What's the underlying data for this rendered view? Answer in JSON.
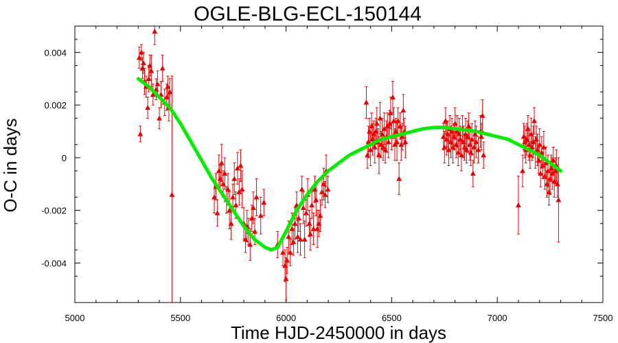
{
  "chart_data": {
    "type": "scatter",
    "title": "OGLE-BLG-ECL-150144",
    "xlabel": "Time HJD-2450000 in days",
    "ylabel": "O-C in days",
    "xlim": [
      5000,
      7500
    ],
    "ylim": [
      -0.0055,
      0.005
    ],
    "x_ticks": [
      5000,
      5500,
      6000,
      6500,
      7000,
      7500
    ],
    "y_ticks": [
      -0.004,
      -0.002,
      0,
      0.002,
      0.004
    ],
    "x_tick_labels": [
      "5000",
      "5500",
      "6000",
      "6500",
      "7000",
      "7500"
    ],
    "y_tick_labels": [
      "-0.004",
      "-0.002",
      "0",
      "0.002",
      "0.004"
    ],
    "grid": false,
    "colors": {
      "points": "#ee0000",
      "model": "#00ee00",
      "axes": "#000000"
    },
    "series": [
      {
        "kind": "observations",
        "marker": "triangle",
        "points": [
          [
            5305,
            0.0038,
            0.0004
          ],
          [
            5310,
            0.0009,
            0.0003
          ],
          [
            5315,
            0.004,
            0.0003
          ],
          [
            5320,
            0.0034,
            0.0004
          ],
          [
            5325,
            0.0036,
            0.0004
          ],
          [
            5330,
            0.0029,
            0.0005
          ],
          [
            5338,
            0.0027,
            0.0004
          ],
          [
            5345,
            0.0019,
            0.0004
          ],
          [
            5350,
            0.003,
            0.0005
          ],
          [
            5355,
            0.0035,
            0.0004
          ],
          [
            5362,
            0.0033,
            0.0006
          ],
          [
            5370,
            0.0024,
            0.0004
          ],
          [
            5378,
            0.0048,
            0.0005
          ],
          [
            5385,
            0.0026,
            0.0004
          ],
          [
            5392,
            0.0028,
            0.0005
          ],
          [
            5400,
            0.0015,
            0.0004
          ],
          [
            5408,
            0.0024,
            0.0005
          ],
          [
            5415,
            0.0034,
            0.0005
          ],
          [
            5425,
            0.0021,
            0.0005
          ],
          [
            5435,
            0.0023,
            0.0005
          ],
          [
            5440,
            0.0027,
            0.0004
          ],
          [
            5445,
            0.0019,
            0.0005
          ],
          [
            5450,
            0.0025,
            0.0005
          ],
          [
            5460,
            -0.0014,
            0.0045
          ],
          [
            5660,
            -0.0015,
            0.0006
          ],
          [
            5668,
            -0.0011,
            0.0005
          ],
          [
            5675,
            -0.0021,
            0.0005
          ],
          [
            5682,
            -0.0005,
            0.0006
          ],
          [
            5688,
            -0.0008,
            0.0005
          ],
          [
            5695,
            -0.0002,
            0.0007
          ],
          [
            5702,
            -0.001,
            0.0005
          ],
          [
            5710,
            -0.0006,
            0.0006
          ],
          [
            5718,
            -0.0016,
            0.0005
          ],
          [
            5725,
            -0.0012,
            0.0006
          ],
          [
            5732,
            -0.002,
            0.0007
          ],
          [
            5740,
            -0.0025,
            0.0006
          ],
          [
            5748,
            -0.0015,
            0.0005
          ],
          [
            5755,
            -0.0008,
            0.0006
          ],
          [
            5762,
            -0.0018,
            0.0005
          ],
          [
            5770,
            -0.0004,
            0.0006
          ],
          [
            5778,
            -0.0013,
            0.0005
          ],
          [
            5785,
            -0.0003,
            0.0006
          ],
          [
            5792,
            -0.0012,
            0.0007
          ],
          [
            5800,
            -0.0025,
            0.0006
          ],
          [
            5808,
            -0.0031,
            0.0005
          ],
          [
            5815,
            -0.0026,
            0.0006
          ],
          [
            5822,
            -0.0028,
            0.0005
          ],
          [
            5830,
            -0.0033,
            0.0006
          ],
          [
            5838,
            -0.0023,
            0.0005
          ],
          [
            5845,
            -0.0019,
            0.0006
          ],
          [
            5852,
            -0.0028,
            0.0005
          ],
          [
            5860,
            -0.0015,
            0.0007
          ],
          [
            5880,
            -0.0022,
            0.0007
          ],
          [
            5895,
            -0.0017,
            0.0005
          ],
          [
            5960,
            -0.0033,
            0.0005
          ],
          [
            5985,
            -0.0036,
            0.0005
          ],
          [
            5995,
            -0.0041,
            0.0006
          ],
          [
            6000,
            -0.0046,
            0.0008
          ],
          [
            6005,
            -0.0039,
            0.0005
          ],
          [
            6012,
            -0.003,
            0.0006
          ],
          [
            6020,
            -0.0036,
            0.0005
          ],
          [
            6028,
            -0.0027,
            0.0006
          ],
          [
            6035,
            -0.0032,
            0.0005
          ],
          [
            6042,
            -0.0025,
            0.0006
          ],
          [
            6050,
            -0.0018,
            0.0005
          ],
          [
            6055,
            -0.003,
            0.0006
          ],
          [
            6060,
            -0.0023,
            0.0005
          ],
          [
            6068,
            -0.0031,
            0.0006
          ],
          [
            6075,
            -0.0012,
            0.0005
          ],
          [
            6082,
            -0.0019,
            0.0006
          ],
          [
            6088,
            -0.0031,
            0.0007
          ],
          [
            6095,
            -0.0021,
            0.0005
          ],
          [
            6102,
            -0.0014,
            0.0006
          ],
          [
            6110,
            -0.0025,
            0.0005
          ],
          [
            6115,
            -0.0029,
            0.0006
          ],
          [
            6122,
            -0.0018,
            0.0005
          ],
          [
            6130,
            -0.0027,
            0.0006
          ],
          [
            6136,
            -0.0012,
            0.0005
          ],
          [
            6142,
            -0.0016,
            0.0006
          ],
          [
            6148,
            -0.0027,
            0.0007
          ],
          [
            6155,
            -0.0025,
            0.0005
          ],
          [
            6162,
            -0.0022,
            0.0006
          ],
          [
            6170,
            -0.0013,
            0.0005
          ],
          [
            6178,
            -0.001,
            0.0006
          ],
          [
            6185,
            -0.0014,
            0.0005
          ],
          [
            6190,
            -0.0005,
            0.0006
          ],
          [
            6198,
            -0.0012,
            0.0005
          ],
          [
            6380,
            0.0021,
            0.0006
          ],
          [
            6385,
            0.0001,
            0.0005
          ],
          [
            6390,
            0.0006,
            0.0006
          ],
          [
            6395,
            0.001,
            0.0005
          ],
          [
            6400,
            0.0003,
            0.0006
          ],
          [
            6405,
            0.0012,
            0.0005
          ],
          [
            6410,
            0.0007,
            0.0006
          ],
          [
            6415,
            0.0009,
            0.0005
          ],
          [
            6420,
            0.0004,
            0.0006
          ],
          [
            6425,
            0.001,
            0.0005
          ],
          [
            6430,
            0.0013,
            0.0006
          ],
          [
            6435,
            0.0006,
            0.0005
          ],
          [
            6440,
            0.0001,
            0.0007
          ],
          [
            6445,
            0.0015,
            0.0006
          ],
          [
            6450,
            0.0005,
            0.0005
          ],
          [
            6455,
            0.0009,
            0.0006
          ],
          [
            6460,
            0.0004,
            0.0005
          ],
          [
            6465,
            0.0011,
            0.0006
          ],
          [
            6470,
            0.0003,
            0.0005
          ],
          [
            6475,
            0.0008,
            0.0006
          ],
          [
            6480,
            0.0012,
            0.0005
          ],
          [
            6485,
            0.0006,
            0.0006
          ],
          [
            6490,
            0.0013,
            0.0005
          ],
          [
            6495,
            0.0017,
            0.0006
          ],
          [
            6500,
            0.0008,
            0.0005
          ],
          [
            6505,
            0.0023,
            0.0006
          ],
          [
            6510,
            0.0014,
            0.0005
          ],
          [
            6515,
            0.0005,
            0.0006
          ],
          [
            6520,
            0.001,
            0.0005
          ],
          [
            6525,
            0.0006,
            0.0007
          ],
          [
            6530,
            0.0014,
            0.0005
          ],
          [
            6535,
            -0.0008,
            0.0006
          ],
          [
            6540,
            0.0012,
            0.0005
          ],
          [
            6545,
            0.0005,
            0.0006
          ],
          [
            6550,
            0.0008,
            0.0005
          ],
          [
            6555,
            0.0018,
            0.0006
          ],
          [
            6560,
            0.001,
            0.0005
          ],
          [
            6565,
            0.0006,
            0.0006
          ],
          [
            6745,
            0.0008,
            0.0005
          ],
          [
            6750,
            0.0004,
            0.0006
          ],
          [
            6755,
            0.0014,
            0.0005
          ],
          [
            6760,
            0.0007,
            0.0006
          ],
          [
            6765,
            0.0009,
            0.0005
          ],
          [
            6770,
            0.0003,
            0.0006
          ],
          [
            6775,
            0.0011,
            0.0005
          ],
          [
            6780,
            0.0006,
            0.0006
          ],
          [
            6785,
            0.001,
            0.0005
          ],
          [
            6790,
            0.0004,
            0.0006
          ],
          [
            6795,
            0.0008,
            0.0005
          ],
          [
            6800,
            0.0013,
            0.0006
          ],
          [
            6805,
            0.0005,
            0.0005
          ],
          [
            6810,
            0.001,
            0.0006
          ],
          [
            6815,
            0.0002,
            0.0005
          ],
          [
            6820,
            0.0009,
            0.0006
          ],
          [
            6825,
            0.0007,
            0.0005
          ],
          [
            6830,
            0.0001,
            0.0006
          ],
          [
            6835,
            0.0011,
            0.0005
          ],
          [
            6840,
            0.0006,
            0.0006
          ],
          [
            6845,
            0.0004,
            0.0005
          ],
          [
            6850,
            0.0009,
            0.0006
          ],
          [
            6855,
            0.0003,
            0.0005
          ],
          [
            6860,
            0.0008,
            0.0006
          ],
          [
            6865,
            0.0012,
            0.0005
          ],
          [
            6870,
            0.0005,
            0.0006
          ],
          [
            6875,
            0.0002,
            0.0005
          ],
          [
            6880,
            0.0007,
            0.0006
          ],
          [
            6885,
            -0.0006,
            0.0005
          ],
          [
            6890,
            0.0004,
            0.0006
          ],
          [
            6895,
            0.0009,
            0.0005
          ],
          [
            6900,
            0.0006,
            0.0006
          ],
          [
            6910,
            0.0003,
            0.0005
          ],
          [
            6920,
            0.001,
            0.0006
          ],
          [
            6925,
            0.0008,
            0.0005
          ],
          [
            6930,
            0.0016,
            0.0006
          ],
          [
            6935,
            0.0001,
            0.0005
          ],
          [
            7100,
            -0.0018,
            0.0011
          ],
          [
            7120,
            -0.0005,
            0.0006
          ],
          [
            7125,
            0.0008,
            0.0005
          ],
          [
            7130,
            0.0006,
            0.0006
          ],
          [
            7135,
            0.0003,
            0.0005
          ],
          [
            7140,
            0.0007,
            0.0006
          ],
          [
            7145,
            0.0011,
            0.0005
          ],
          [
            7150,
            0.0005,
            0.0006
          ],
          [
            7155,
            0.0001,
            0.0005
          ],
          [
            7160,
            0.0009,
            0.0006
          ],
          [
            7165,
            0.0004,
            0.0005
          ],
          [
            7170,
            0.0006,
            0.0006
          ],
          [
            7175,
            0.0014,
            0.0005
          ],
          [
            7180,
            0.0002,
            0.0006
          ],
          [
            7185,
            0.0007,
            0.0005
          ],
          [
            7190,
            0.0003,
            0.0006
          ],
          [
            7195,
            -0.0001,
            0.0005
          ],
          [
            7200,
            0.0005,
            0.0006
          ],
          [
            7205,
            -0.0006,
            0.0005
          ],
          [
            7210,
            0.0002,
            0.0006
          ],
          [
            7215,
            -0.0003,
            0.0005
          ],
          [
            7220,
            0.0004,
            0.0006
          ],
          [
            7225,
            -0.0007,
            0.0005
          ],
          [
            7230,
            -0.0002,
            0.0006
          ],
          [
            7235,
            -0.001,
            0.0005
          ],
          [
            7240,
            -0.0005,
            0.0006
          ],
          [
            7245,
            -0.0013,
            0.0005
          ],
          [
            7250,
            -0.0008,
            0.0006
          ],
          [
            7255,
            -0.0004,
            0.0005
          ],
          [
            7260,
            -0.0006,
            0.0006
          ],
          [
            7265,
            -0.0001,
            0.0005
          ],
          [
            7270,
            -0.0009,
            0.0006
          ],
          [
            7275,
            -0.0005,
            0.0005
          ],
          [
            7280,
            -0.0003,
            0.0006
          ],
          [
            7285,
            -0.001,
            0.0005
          ],
          [
            7290,
            -0.0016,
            0.0016
          ]
        ]
      },
      {
        "kind": "model",
        "line": "solid",
        "points": [
          [
            5300,
            0.003
          ],
          [
            5350,
            0.0027
          ],
          [
            5400,
            0.0023
          ],
          [
            5450,
            0.0019
          ],
          [
            5500,
            0.0013
          ],
          [
            5550,
            0.0006
          ],
          [
            5600,
            -0.0001
          ],
          [
            5650,
            -0.0008
          ],
          [
            5700,
            -0.0014
          ],
          [
            5750,
            -0.002
          ],
          [
            5800,
            -0.0026
          ],
          [
            5850,
            -0.0031
          ],
          [
            5900,
            -0.0034
          ],
          [
            5930,
            -0.0035
          ],
          [
            5960,
            -0.0034
          ],
          [
            6000,
            -0.0028
          ],
          [
            6050,
            -0.002
          ],
          [
            6100,
            -0.0014
          ],
          [
            6150,
            -0.0009
          ],
          [
            6200,
            -0.0005
          ],
          [
            6250,
            -0.0002
          ],
          [
            6300,
            0.0001
          ],
          [
            6350,
            0.0003
          ],
          [
            6400,
            0.0005
          ],
          [
            6450,
            0.0007
          ],
          [
            6500,
            0.0008
          ],
          [
            6550,
            0.0009
          ],
          [
            6600,
            0.001
          ],
          [
            6650,
            0.0011
          ],
          [
            6700,
            0.00115
          ],
          [
            6750,
            0.00115
          ],
          [
            6800,
            0.0011
          ],
          [
            6850,
            0.00105
          ],
          [
            6900,
            0.001
          ],
          [
            6950,
            0.0009
          ],
          [
            7000,
            0.0008
          ],
          [
            7050,
            0.0007
          ],
          [
            7100,
            0.0005
          ],
          [
            7150,
            0.0003
          ],
          [
            7200,
            0.0001
          ],
          [
            7250,
            -0.0002
          ],
          [
            7300,
            -0.0005
          ]
        ]
      }
    ]
  }
}
